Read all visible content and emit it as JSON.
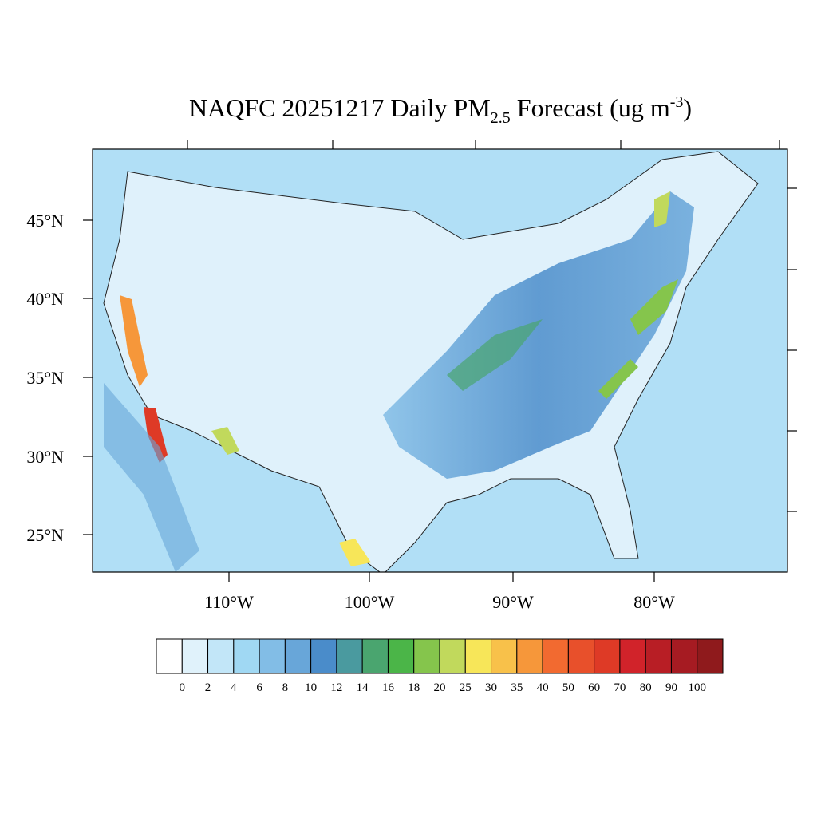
{
  "title": {
    "prefix": "NAQFC 20251217 Daily PM",
    "sub": "2.5",
    "middle": " Forecast (ug m",
    "sup": "-3",
    "suffix": ")"
  },
  "lat_labels": [
    "45°N",
    "40°N",
    "35°N",
    "30°N",
    "25°N"
  ],
  "lon_labels": [
    "110°W",
    "100°W",
    "90°W",
    "80°W"
  ],
  "colorbar": {
    "levels": [
      0,
      2,
      4,
      6,
      8,
      10,
      12,
      14,
      16,
      18,
      20,
      25,
      30,
      35,
      40,
      50,
      60,
      70,
      80,
      90,
      100
    ],
    "colors": [
      "#ffffff",
      "#e0f2fb",
      "#c2e6f8",
      "#a0d8f3",
      "#82bde6",
      "#68a6d9",
      "#4a8cca",
      "#4a9a9f",
      "#4aa56f",
      "#4bb548",
      "#85c54c",
      "#c1d95c",
      "#f7e659",
      "#f8c14a",
      "#f6973a",
      "#f26a30",
      "#e8502b",
      "#de3a26",
      "#d1232a",
      "#b81e25",
      "#a61b22",
      "#8f1a1c"
    ]
  }
}
